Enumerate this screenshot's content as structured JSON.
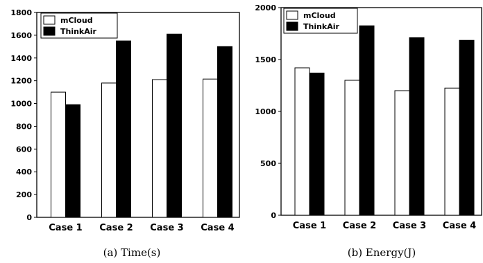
{
  "chart_data": [
    {
      "type": "bar",
      "caption": "(a) Time(s)",
      "categories": [
        "Case 1",
        "Case 2",
        "Case 3",
        "Case 4"
      ],
      "series": [
        {
          "name": "mCloud",
          "color": "#ffffff",
          "values": [
            1100,
            1180,
            1210,
            1215
          ]
        },
        {
          "name": "ThinkAir",
          "color": "#000000",
          "values": [
            990,
            1550,
            1610,
            1500
          ]
        }
      ],
      "ylim": [
        0,
        1800
      ],
      "yticks": [
        0,
        200,
        400,
        600,
        800,
        1000,
        1200,
        1400,
        1600,
        1800
      ],
      "legend": "top-left",
      "grid": false
    },
    {
      "type": "bar",
      "caption": "(b) Energy(J)",
      "categories": [
        "Case 1",
        "Case 2",
        "Case 3",
        "Case 4"
      ],
      "series": [
        {
          "name": "mCloud",
          "color": "#ffffff",
          "values": [
            1420,
            1300,
            1200,
            1225
          ]
        },
        {
          "name": "ThinkAir",
          "color": "#000000",
          "values": [
            1370,
            1825,
            1710,
            1685
          ]
        }
      ],
      "ylim": [
        0,
        2000
      ],
      "yticks": [
        0,
        500,
        1000,
        1500,
        2000
      ],
      "legend": "top-left",
      "grid": false
    }
  ]
}
